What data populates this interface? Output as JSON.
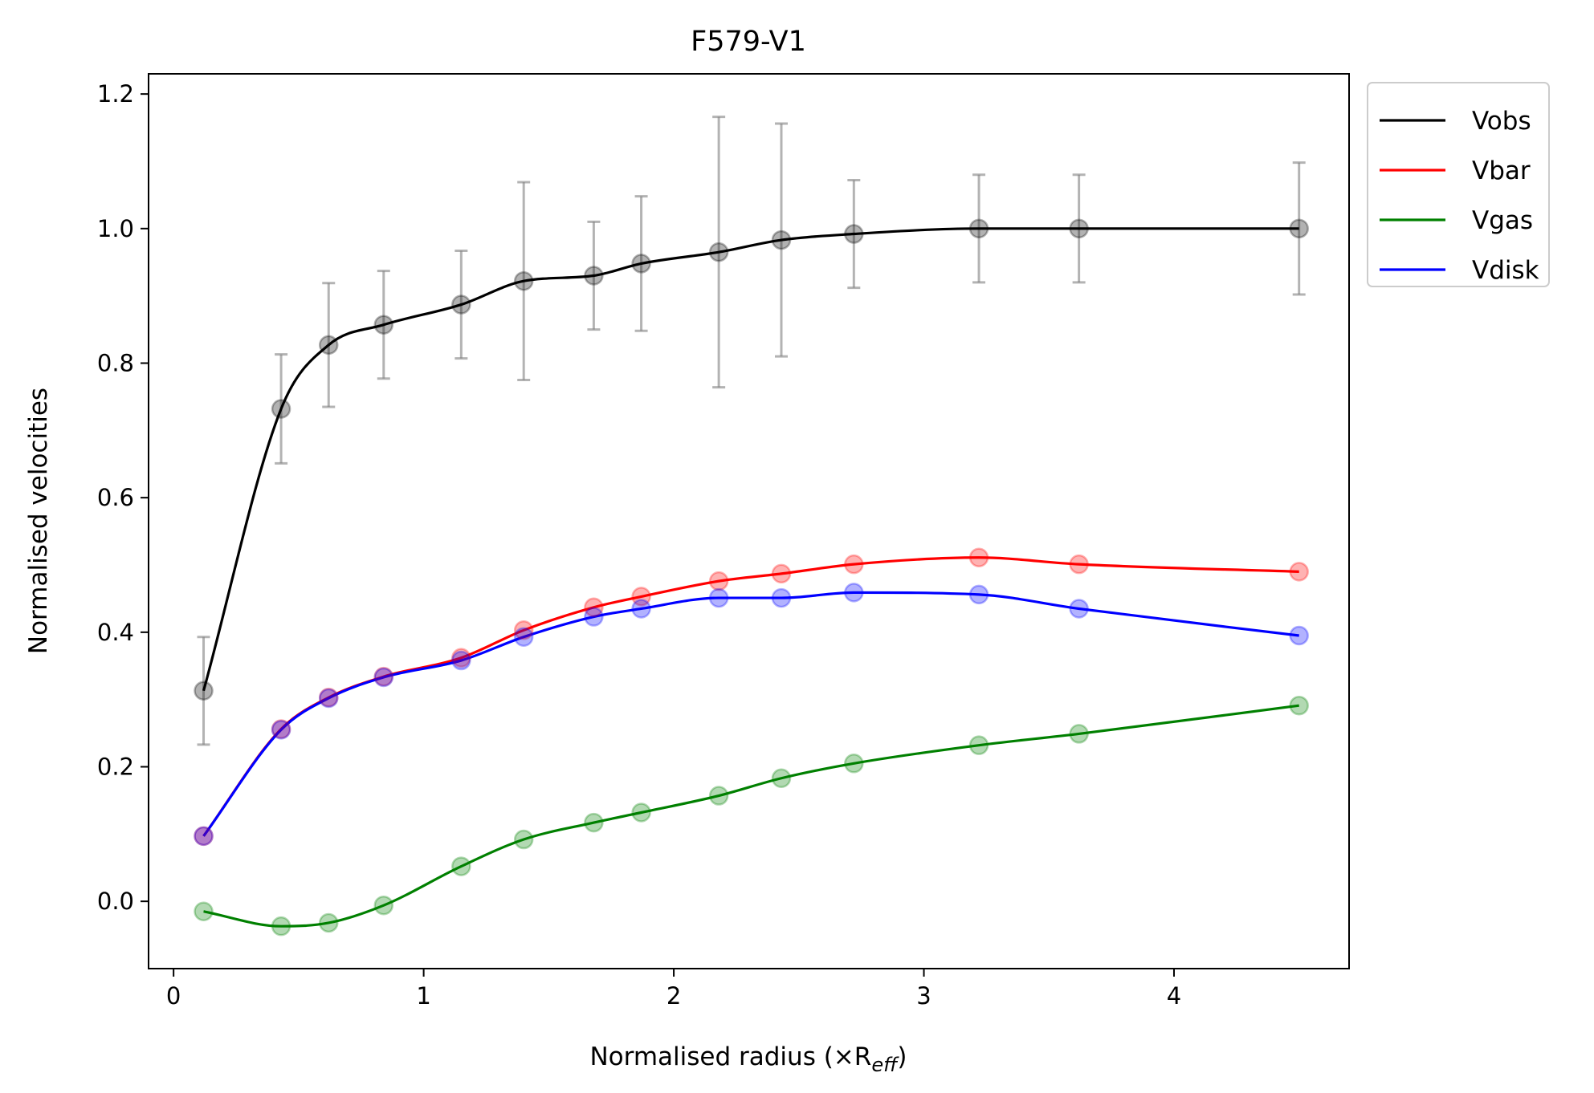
{
  "chart_data": {
    "type": "line",
    "title": "F579-V1",
    "xlabel": "Normalised radius (×R",
    "xlabel_sub": "eff",
    "xlabel_close": ")",
    "ylabel": "Normalised velocities",
    "xlim": [
      -0.1,
      4.7
    ],
    "ylim": [
      -0.1,
      1.23
    ],
    "xticks": [
      0,
      1,
      2,
      3,
      4
    ],
    "yticks": [
      0.0,
      0.2,
      0.4,
      0.6,
      0.8,
      1.0,
      1.2
    ],
    "xtick_labels": [
      "0",
      "1",
      "2",
      "3",
      "4"
    ],
    "ytick_labels": [
      "0.0",
      "0.2",
      "0.4",
      "0.6",
      "0.8",
      "1.0",
      "1.2"
    ],
    "legend_position": "outside-top-right",
    "grid": false,
    "x": [
      0.12,
      0.43,
      0.62,
      0.84,
      1.15,
      1.4,
      1.68,
      1.87,
      2.18,
      2.43,
      2.72,
      3.22,
      3.62,
      4.5
    ],
    "series": [
      {
        "name": "Vobs",
        "color": "#000000",
        "values": [
          0.313,
          0.732,
          0.827,
          0.857,
          0.887,
          0.922,
          0.93,
          0.948,
          0.965,
          0.983,
          0.992,
          1.0,
          1.0,
          1.0
        ],
        "errors": [
          0.08,
          0.081,
          0.092,
          0.08,
          0.08,
          0.147,
          0.08,
          0.1,
          0.201,
          0.173,
          0.08,
          0.08,
          0.08,
          0.098
        ]
      },
      {
        "name": "Vbar",
        "color": "#ff0000",
        "values": [
          0.097,
          0.256,
          0.303,
          0.334,
          0.362,
          0.403,
          0.437,
          0.453,
          0.476,
          0.487,
          0.501,
          0.511,
          0.501,
          0.49
        ]
      },
      {
        "name": "Vgas",
        "color": "#008000",
        "values": [
          -0.015,
          -0.037,
          -0.032,
          -0.006,
          0.052,
          0.092,
          0.117,
          0.132,
          0.157,
          0.183,
          0.205,
          0.232,
          0.249,
          0.291
        ]
      },
      {
        "name": "Vdisk",
        "color": "#0000ff",
        "values": [
          0.097,
          0.255,
          0.302,
          0.333,
          0.358,
          0.393,
          0.423,
          0.435,
          0.451,
          0.451,
          0.459,
          0.456,
          0.435,
          0.395
        ]
      }
    ]
  }
}
